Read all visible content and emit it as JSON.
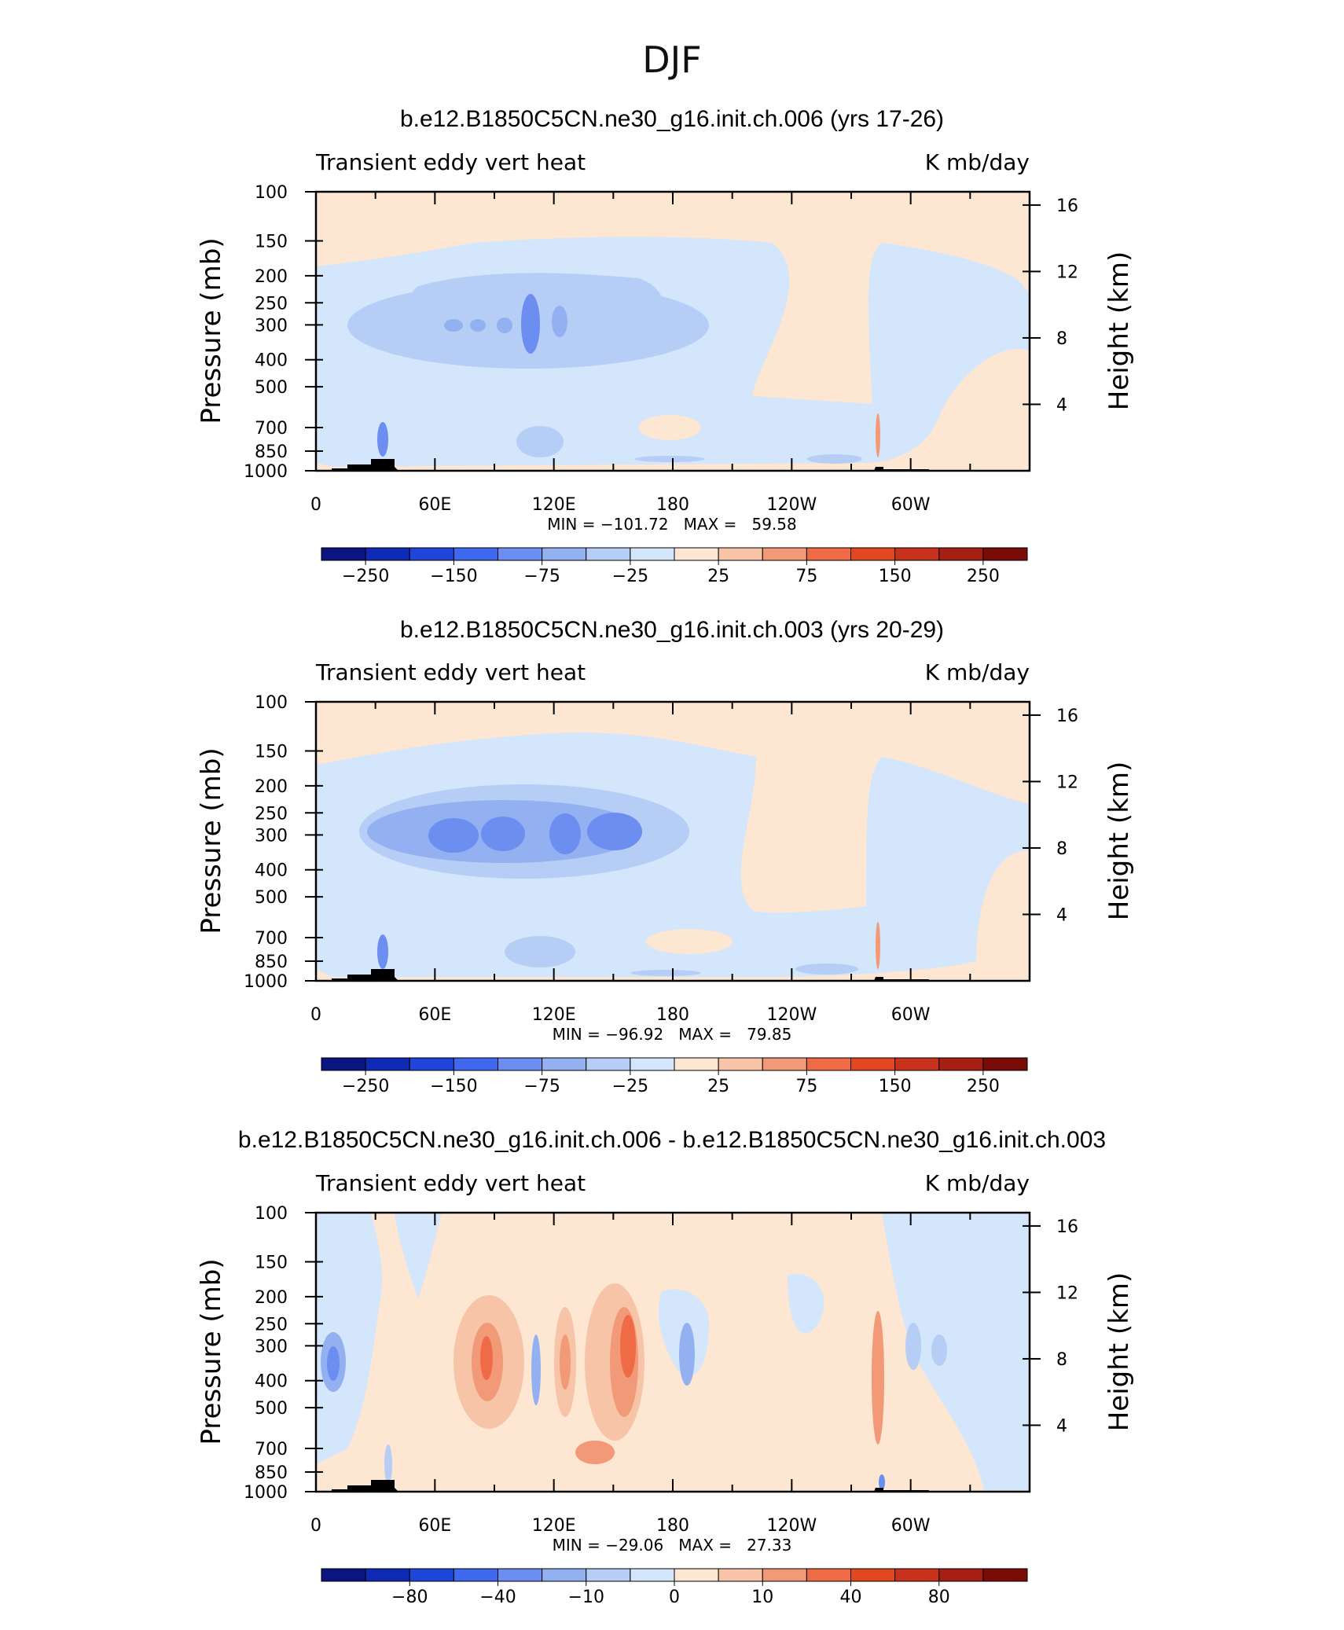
{
  "figure": {
    "season": "DJF"
  },
  "colors": {
    "positive": [
      "#fde6d2",
      "#f7c4a8",
      "#f29a78",
      "#ee6b46",
      "#e2481f",
      "#c8311b",
      "#a61f14",
      "#790c07"
    ],
    "negative": [
      "#d3e6fb",
      "#b6cef5",
      "#93b1f1",
      "#6b8ef0",
      "#3e68ee",
      "#1f46d8",
      "#0f2bb5",
      "#0a157f"
    ],
    "terrain": "#000000"
  },
  "chart_data": [
    {
      "type": "heatmap",
      "title": "b.e12.B1850C5CN.ne30_g16.init.ch.006 (yrs 17-26)",
      "left_label": "Transient eddy vert heat",
      "right_label": "K mb/day",
      "ylabel": "Pressure (mb)",
      "ylabel_right": "Height (km)",
      "ylim": [
        1000,
        100
      ],
      "yticks": [
        100,
        150,
        200,
        250,
        300,
        400,
        500,
        700,
        850,
        1000
      ],
      "yticks_right": [
        16,
        12,
        8,
        4
      ],
      "xlim": [
        0,
        360
      ],
      "xtick_labels": [
        "0",
        "60E",
        "120E",
        "180",
        "120W",
        "60W"
      ],
      "stats": "MIN = −101.72   MAX =   59.58",
      "colorbar_labels": [
        "−250",
        "−150",
        "−75",
        "−25",
        "25",
        "75",
        "150",
        "250"
      ],
      "features": [
        {
          "lon": [
            60,
            175
          ],
          "p": [
            250,
            400
          ],
          "value": -60
        },
        {
          "lon": [
            100,
            110
          ],
          "p": [
            250,
            350
          ],
          "value": -90
        },
        {
          "lon": [
            62,
            88
          ],
          "p": [
            290,
            320
          ],
          "value": -85
        },
        {
          "lon": [
            118,
            130
          ],
          "p": [
            270,
            330
          ],
          "value": -80
        },
        {
          "lon": [
            30,
            40
          ],
          "p": [
            700,
            900
          ],
          "value": -80
        },
        {
          "lon": [
            100,
            125
          ],
          "p": [
            680,
            800
          ],
          "value": -45
        },
        {
          "lon": [
            240,
            260
          ],
          "p": [
            800,
            850
          ],
          "value": -40
        },
        {
          "lon": [
            168,
            200
          ],
          "p": [
            200,
            850
          ],
          "value": 15
        },
        {
          "lon": [
            280,
            300
          ],
          "p": [
            450,
            700
          ],
          "value": 30
        }
      ]
    },
    {
      "type": "heatmap",
      "title": "b.e12.B1850C5CN.ne30_g16.init.ch.003 (yrs 20-29)",
      "left_label": "Transient eddy vert heat",
      "right_label": "K mb/day",
      "ylabel": "Pressure (mb)",
      "ylabel_right": "Height (km)",
      "ylim": [
        1000,
        100
      ],
      "yticks": [
        100,
        150,
        200,
        250,
        300,
        400,
        500,
        700,
        850,
        1000
      ],
      "yticks_right": [
        16,
        12,
        8,
        4
      ],
      "xlim": [
        0,
        360
      ],
      "xtick_labels": [
        "0",
        "60E",
        "120E",
        "180",
        "120W",
        "60W"
      ],
      "stats": "MIN = −96.92   MAX =   79.85",
      "colorbar_labels": [
        "−250",
        "−150",
        "−75",
        "−25",
        "25",
        "75",
        "150",
        "250"
      ],
      "features": [
        {
          "lon": [
            50,
            180
          ],
          "p": [
            250,
            420
          ],
          "value": -60
        },
        {
          "lon": [
            62,
            110
          ],
          "p": [
            280,
            340
          ],
          "value": -90
        },
        {
          "lon": [
            115,
            130
          ],
          "p": [
            270,
            340
          ],
          "value": -80
        },
        {
          "lon": [
            135,
            160
          ],
          "p": [
            270,
            330
          ],
          "value": -80
        },
        {
          "lon": [
            30,
            40
          ],
          "p": [
            700,
            900
          ],
          "value": -80
        },
        {
          "lon": [
            95,
            130
          ],
          "p": [
            700,
            800
          ],
          "value": -45
        },
        {
          "lon": [
            165,
            200
          ],
          "p": [
            200,
            850
          ],
          "value": 15
        },
        {
          "lon": [
            280,
            300
          ],
          "p": [
            450,
            700
          ],
          "value": 30
        }
      ]
    },
    {
      "type": "heatmap",
      "title": "b.e12.B1850C5CN.ne30_g16.init.ch.006 - b.e12.B1850C5CN.ne30_g16.init.ch.003",
      "left_label": "Transient eddy vert heat",
      "right_label": "K mb/day",
      "ylabel": "Pressure (mb)",
      "ylabel_right": "Height (km)",
      "ylim": [
        1000,
        100
      ],
      "yticks": [
        100,
        150,
        200,
        250,
        300,
        400,
        500,
        700,
        850,
        1000
      ],
      "yticks_right": [
        16,
        12,
        8,
        4
      ],
      "xlim": [
        0,
        360
      ],
      "xtick_labels": [
        "0",
        "60E",
        "120E",
        "180",
        "120W",
        "60W"
      ],
      "stats": "MIN = −29.06   MAX =   27.33",
      "colorbar_labels": [
        "−80",
        "−40",
        "−10",
        "0",
        "10",
        "40",
        "80"
      ],
      "features": [
        {
          "lon": [
            5,
            15
          ],
          "p": [
            250,
            450
          ],
          "value": -20
        },
        {
          "lon": [
            65,
            90
          ],
          "p": [
            200,
            550
          ],
          "value": 12
        },
        {
          "lon": [
            84,
            90
          ],
          "p": [
            250,
            350
          ],
          "value": 25
        },
        {
          "lon": [
            110,
            115
          ],
          "p": [
            250,
            450
          ],
          "value": -12
        },
        {
          "lon": [
            125,
            135
          ],
          "p": [
            200,
            500
          ],
          "value": 15
        },
        {
          "lon": [
            140,
            165
          ],
          "p": [
            200,
            550
          ],
          "value": 15
        },
        {
          "lon": [
            150,
            160
          ],
          "p": [
            250,
            350
          ],
          "value": 25
        },
        {
          "lon": [
            185,
            192
          ],
          "p": [
            250,
            400
          ],
          "value": -15
        },
        {
          "lon": [
            280,
            285
          ],
          "p": [
            250,
            600
          ],
          "value": 15
        },
        {
          "lon": [
            295,
            305
          ],
          "p": [
            250,
            400
          ],
          "value": -8
        },
        {
          "lon": [
            120,
            135
          ],
          "p": [
            650,
            750
          ],
          "value": 15
        }
      ]
    }
  ]
}
